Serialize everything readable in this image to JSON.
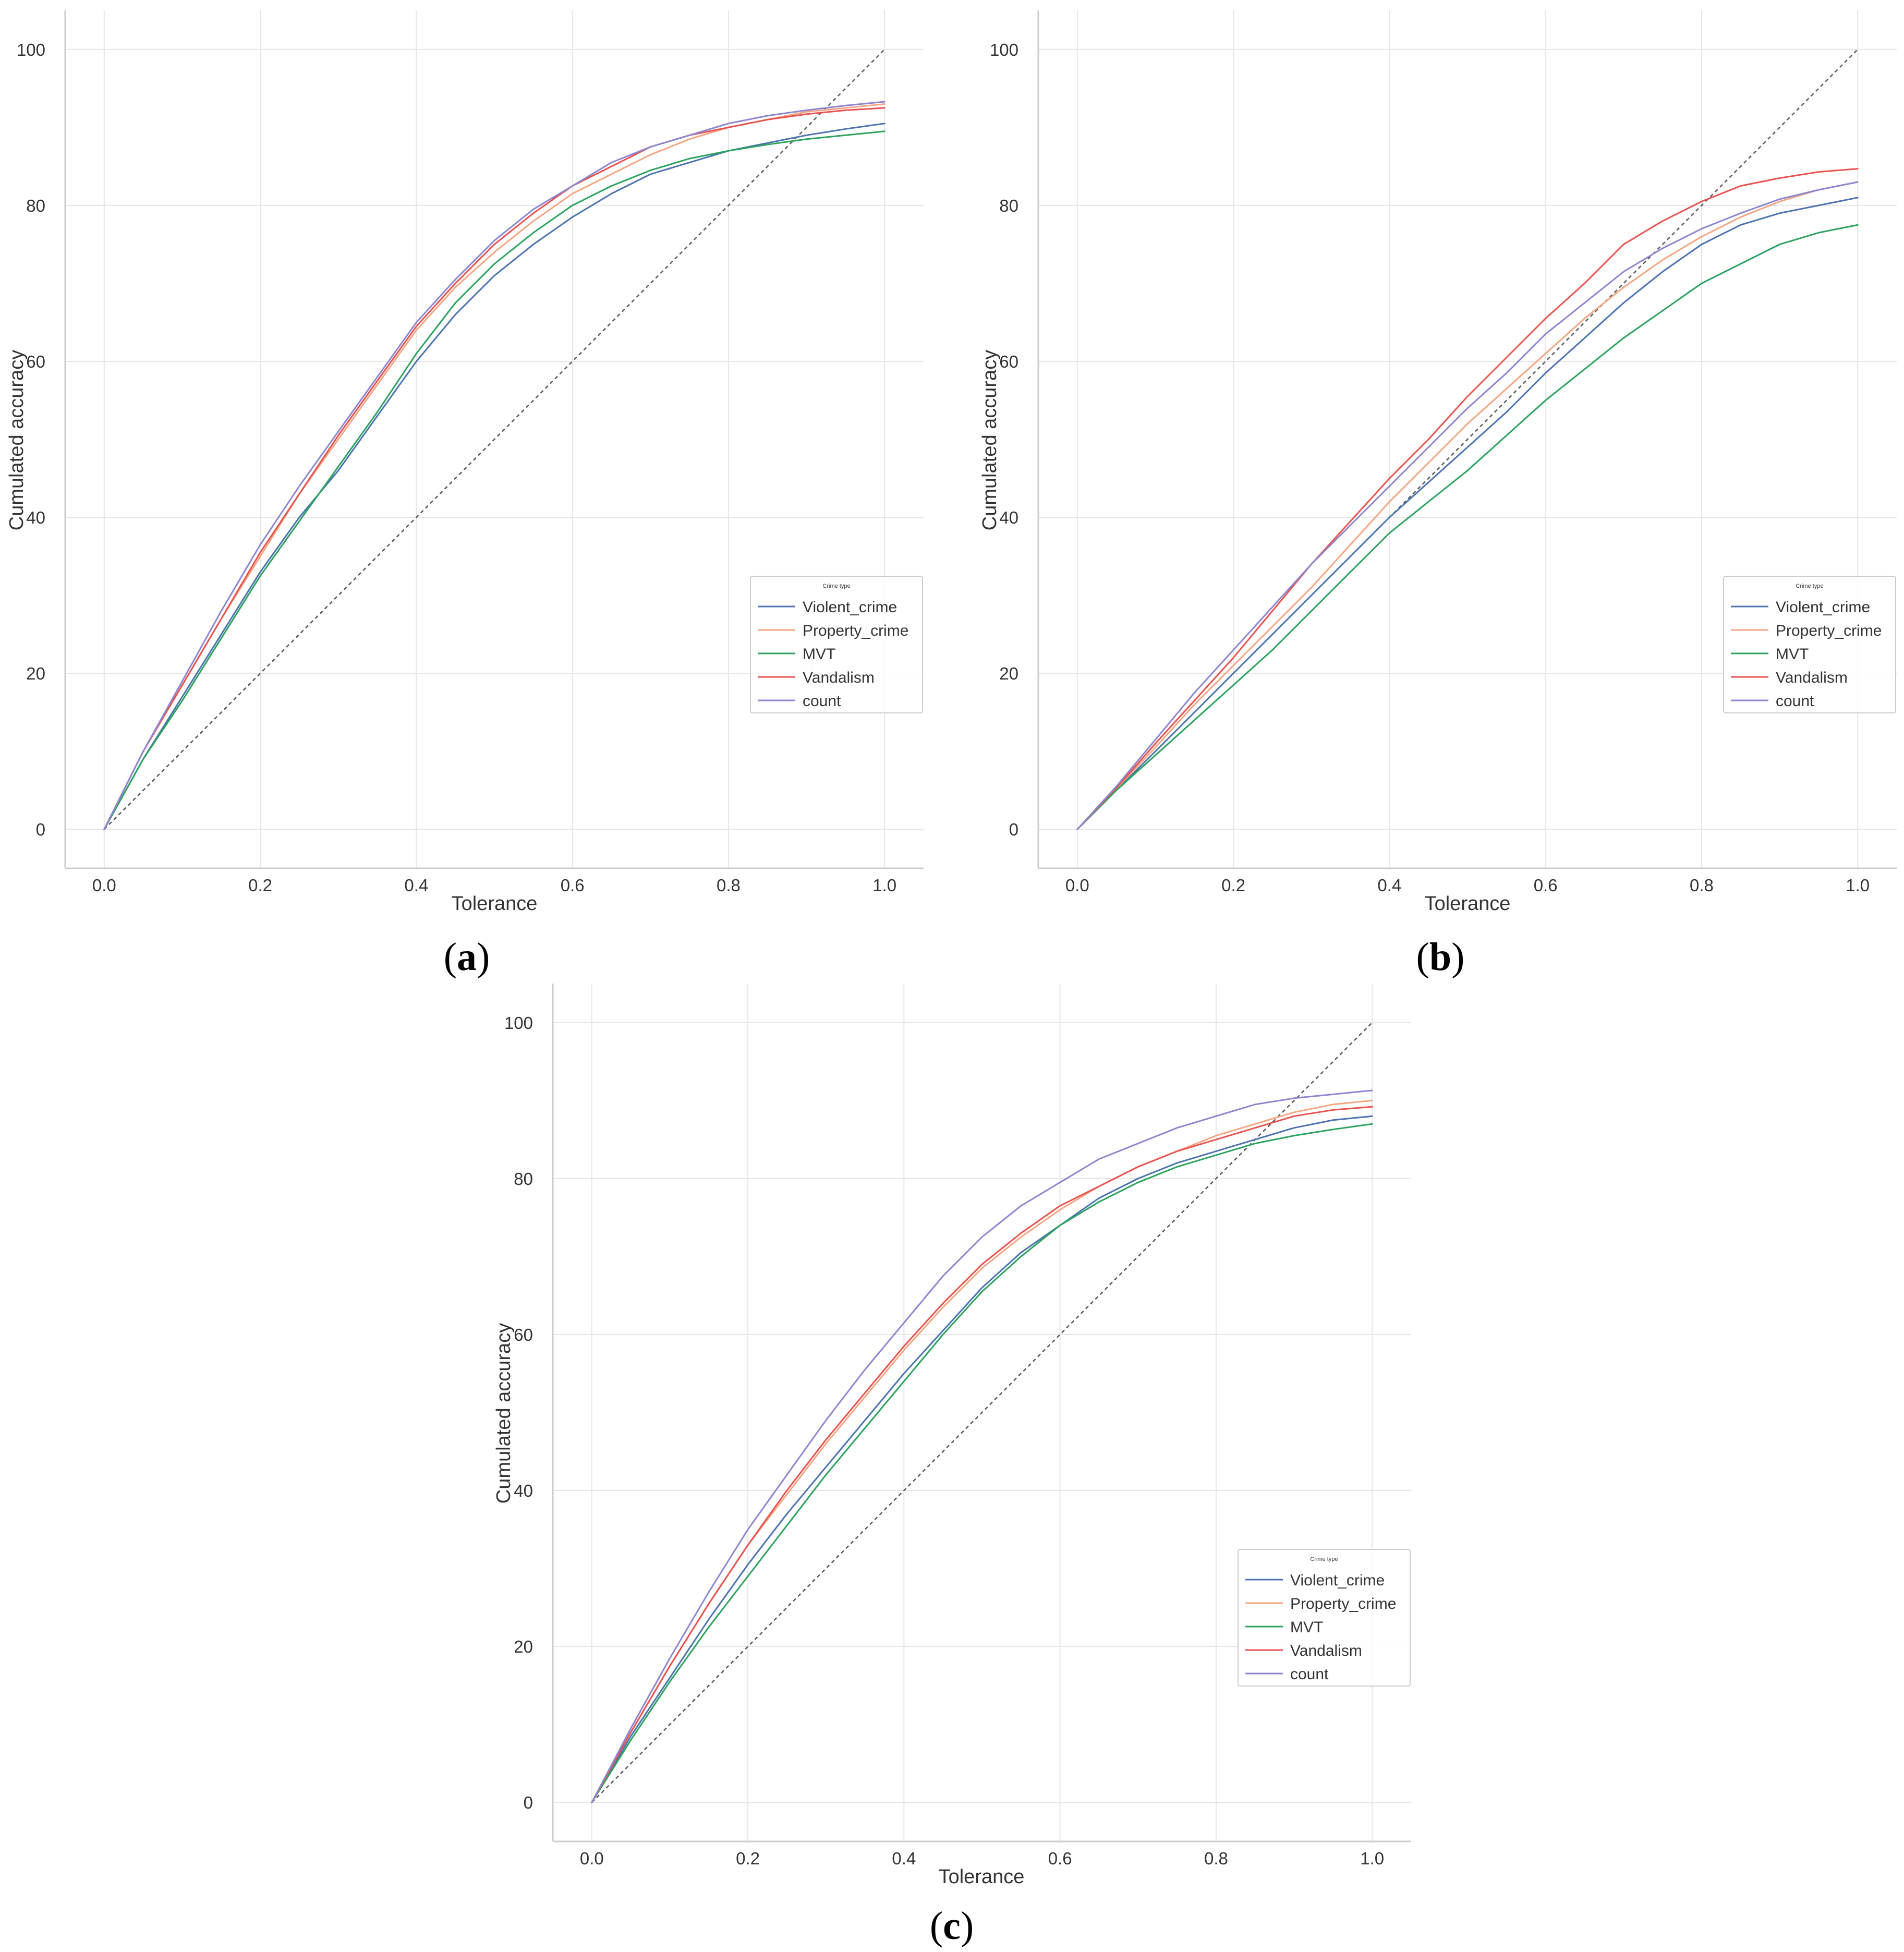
{
  "figure": {
    "background": "#ffffff"
  },
  "chart_data": [
    {
      "id": "a",
      "type": "line",
      "caption_letter": "a",
      "xlabel": "Tolerance",
      "ylabel": "Cumulated accuracy",
      "xlim": [
        -0.05,
        1.05
      ],
      "ylim": [
        -5,
        105
      ],
      "xticks": [
        0.0,
        0.2,
        0.4,
        0.6,
        0.8,
        1.0
      ],
      "xtick_labels": [
        "0.0",
        "0.2",
        "0.4",
        "0.6",
        "0.8",
        "1.0"
      ],
      "yticks": [
        0,
        20,
        40,
        60,
        80,
        100
      ],
      "ytick_labels": [
        "0",
        "20",
        "40",
        "60",
        "80",
        "100"
      ],
      "grid": true,
      "legend": {
        "title": "Crime type",
        "location": "lower-right"
      },
      "reference_line": {
        "x": [
          0,
          1
        ],
        "y": [
          0,
          100
        ],
        "style": "dashed",
        "color": "#555555"
      },
      "x": [
        0.0,
        0.05,
        0.1,
        0.15,
        0.2,
        0.25,
        0.3,
        0.35,
        0.4,
        0.45,
        0.5,
        0.55,
        0.6,
        0.65,
        0.7,
        0.75,
        0.8,
        0.85,
        0.9,
        0.95,
        1.0
      ],
      "series": [
        {
          "name": "Violent_crime",
          "color": "#4c72b0",
          "values": [
            0,
            9,
            17,
            25,
            33,
            40,
            46,
            53,
            60,
            66,
            71,
            75,
            78.5,
            81.5,
            84,
            85.5,
            87,
            88,
            89,
            89.8,
            90.5
          ]
        },
        {
          "name": "Property_crime",
          "color": "#f4a582",
          "values": [
            0,
            10,
            18.5,
            27,
            35,
            43,
            50,
            57,
            64,
            69.5,
            74,
            78,
            81.5,
            84,
            86.5,
            88.5,
            90,
            91,
            92,
            92.5,
            93
          ]
        },
        {
          "name": "MVT",
          "color": "#2ca25f",
          "values": [
            0,
            9,
            16.5,
            24.5,
            32.5,
            39.5,
            46.5,
            53.5,
            61,
            67.5,
            72.5,
            76.5,
            80,
            82.5,
            84.5,
            86,
            87,
            87.8,
            88.5,
            89,
            89.5
          ]
        },
        {
          "name": "Vandalism",
          "color": "#e8524f",
          "values": [
            0,
            10,
            18.5,
            27,
            35.5,
            43,
            50.5,
            57.5,
            64.5,
            70,
            75,
            79,
            82.5,
            85,
            87.5,
            89,
            90,
            91,
            91.7,
            92.2,
            92.5
          ]
        },
        {
          "name": "count",
          "color": "#8c86d0",
          "values": [
            0,
            10,
            19,
            28,
            36.5,
            44,
            51,
            58,
            65,
            70.5,
            75.5,
            79.5,
            82.5,
            85.5,
            87.5,
            89,
            90.5,
            91.5,
            92.2,
            92.8,
            93.3
          ]
        }
      ]
    },
    {
      "id": "b",
      "type": "line",
      "caption_letter": "b",
      "xlabel": "Tolerance",
      "ylabel": "Cumulated accuracy",
      "xlim": [
        -0.05,
        1.05
      ],
      "ylim": [
        -5,
        105
      ],
      "xticks": [
        0.0,
        0.2,
        0.4,
        0.6,
        0.8,
        1.0
      ],
      "xtick_labels": [
        "0.0",
        "0.2",
        "0.4",
        "0.6",
        "0.8",
        "1.0"
      ],
      "yticks": [
        0,
        20,
        40,
        60,
        80,
        100
      ],
      "ytick_labels": [
        "0",
        "20",
        "40",
        "60",
        "80",
        "100"
      ],
      "grid": true,
      "legend": {
        "title": "Crime type",
        "location": "lower-right"
      },
      "reference_line": {
        "x": [
          0,
          1
        ],
        "y": [
          0,
          100
        ],
        "style": "dashed",
        "color": "#555555"
      },
      "x": [
        0.0,
        0.05,
        0.1,
        0.15,
        0.2,
        0.25,
        0.3,
        0.35,
        0.4,
        0.45,
        0.5,
        0.55,
        0.6,
        0.65,
        0.7,
        0.75,
        0.8,
        0.85,
        0.9,
        0.95,
        1.0
      ],
      "series": [
        {
          "name": "Violent_crime",
          "color": "#4c72b0",
          "values": [
            0,
            5,
            10,
            15,
            20,
            25,
            30,
            35,
            40,
            44.5,
            49,
            53.5,
            58.5,
            63,
            67.5,
            71.5,
            75,
            77.5,
            79,
            80,
            81
          ]
        },
        {
          "name": "Property_crime",
          "color": "#f4a582",
          "values": [
            0,
            5.2,
            10.5,
            16,
            21,
            26,
            31,
            36.5,
            42,
            47,
            52,
            56.5,
            61,
            65.5,
            69.5,
            73,
            76,
            78.5,
            80.5,
            82,
            83
          ]
        },
        {
          "name": "MVT",
          "color": "#2ca25f",
          "values": [
            0,
            5,
            9.5,
            14,
            18.5,
            23,
            28,
            33,
            38,
            42,
            46,
            50.5,
            55,
            59,
            63,
            66.5,
            70,
            72.5,
            75,
            76.5,
            77.5
          ]
        },
        {
          "name": "Vandalism",
          "color": "#e8524f",
          "values": [
            0,
            5.3,
            11,
            16.5,
            22,
            28,
            34,
            39.5,
            45,
            50,
            55.5,
            60.5,
            65.5,
            70,
            75,
            78,
            80.5,
            82.5,
            83.5,
            84.3,
            84.7
          ]
        },
        {
          "name": "count",
          "color": "#8c86d0",
          "values": [
            0,
            5.5,
            11.5,
            17.5,
            23,
            28.5,
            34,
            39,
            44,
            49,
            54,
            58.5,
            63.5,
            67.5,
            71.5,
            74.5,
            77,
            79,
            80.8,
            82,
            83
          ]
        }
      ]
    },
    {
      "id": "c",
      "type": "line",
      "caption_letter": "c",
      "xlabel": "Tolerance",
      "ylabel": "Cumulated accuracy",
      "xlim": [
        -0.05,
        1.05
      ],
      "ylim": [
        -5,
        105
      ],
      "xticks": [
        0.0,
        0.2,
        0.4,
        0.6,
        0.8,
        1.0
      ],
      "xtick_labels": [
        "0.0",
        "0.2",
        "0.4",
        "0.6",
        "0.8",
        "1.0"
      ],
      "yticks": [
        0,
        20,
        40,
        60,
        80,
        100
      ],
      "ytick_labels": [
        "0",
        "20",
        "40",
        "60",
        "80",
        "100"
      ],
      "grid": true,
      "legend": {
        "title": "Crime type",
        "location": "lower-right"
      },
      "reference_line": {
        "x": [
          0,
          1
        ],
        "y": [
          0,
          100
        ],
        "style": "dashed",
        "color": "#555555"
      },
      "x": [
        0.0,
        0.05,
        0.1,
        0.15,
        0.2,
        0.25,
        0.3,
        0.35,
        0.4,
        0.45,
        0.5,
        0.55,
        0.6,
        0.65,
        0.7,
        0.75,
        0.8,
        0.85,
        0.9,
        0.95,
        1.0
      ],
      "series": [
        {
          "name": "Violent_crime",
          "color": "#4c72b0",
          "values": [
            0,
            8.5,
            16,
            23.5,
            30.5,
            37,
            43,
            49,
            55,
            60.5,
            66,
            70.5,
            74,
            77.5,
            80,
            82,
            83.5,
            85,
            86.5,
            87.5,
            88
          ]
        },
        {
          "name": "Property_crime",
          "color": "#f4a582",
          "values": [
            0,
            9,
            17.5,
            25.5,
            33,
            39.5,
            46,
            52,
            58,
            63.5,
            68.5,
            72.5,
            76,
            79,
            81.5,
            83.5,
            85.5,
            87,
            88.5,
            89.5,
            90
          ]
        },
        {
          "name": "MVT",
          "color": "#2ca25f",
          "values": [
            0,
            8,
            15.5,
            22.5,
            29,
            35.5,
            42,
            48,
            54,
            60,
            65.5,
            70,
            74,
            77,
            79.5,
            81.5,
            83,
            84.5,
            85.5,
            86.3,
            87
          ]
        },
        {
          "name": "Vandalism",
          "color": "#e8524f",
          "values": [
            0,
            9,
            17.5,
            25.5,
            33,
            40,
            46.5,
            52.5,
            58.5,
            64,
            69,
            73,
            76.5,
            79,
            81.5,
            83.5,
            85,
            86.5,
            88,
            88.8,
            89.2
          ]
        },
        {
          "name": "count",
          "color": "#8c86d0",
          "values": [
            0,
            9.5,
            18.5,
            27,
            35,
            42,
            49,
            55.5,
            61.5,
            67.5,
            72.5,
            76.5,
            79.5,
            82.5,
            84.5,
            86.5,
            88,
            89.5,
            90.3,
            90.8,
            91.3
          ]
        }
      ]
    }
  ]
}
